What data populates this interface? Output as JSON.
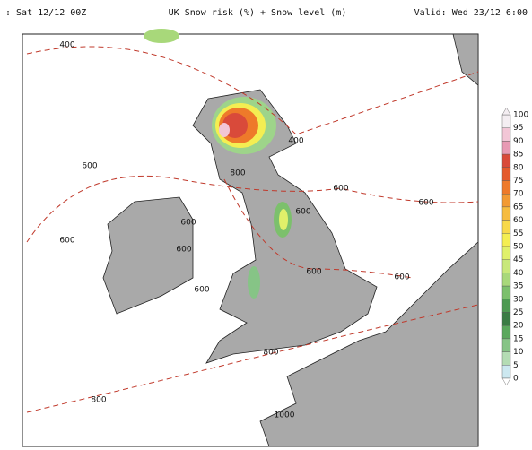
{
  "header": {
    "left": ": Sat 12/12 00Z",
    "center": "UK Snow risk (%) + Snow level (m)",
    "right": "Valid: Wed 23/12 6:00"
  },
  "legend": {
    "labels": [
      100,
      95,
      90,
      85,
      80,
      75,
      70,
      65,
      60,
      55,
      50,
      45,
      40,
      35,
      30,
      25,
      20,
      15,
      10,
      5,
      0
    ],
    "colors": [
      "#f4eef2",
      "#f2c6d6",
      "#e89ab4",
      "#d94a3a",
      "#e45a2c",
      "#ee7a2a",
      "#f29a34",
      "#f6bc40",
      "#f8d94a",
      "#f4ee52",
      "#e0f06a",
      "#c8e87a",
      "#a8d87a",
      "#7cc06c",
      "#4e9a52",
      "#3a7c44",
      "#5aa85c",
      "#86c486",
      "#b4dcb4",
      "#cce8f0",
      "#ffffff"
    ]
  },
  "contour_labels": [
    400,
    400,
    600,
    600,
    600,
    600,
    600,
    600,
    600,
    600,
    600,
    600,
    800,
    800,
    800,
    1000
  ]
}
